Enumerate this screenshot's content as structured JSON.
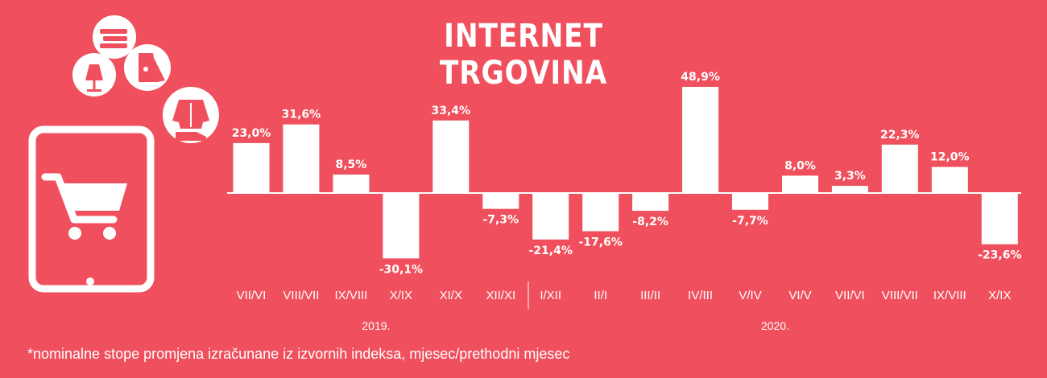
{
  "title": "INTERNET TRGOVINA",
  "footnote": "*nominalne stope promjena izračunane iz izvornih indeksa, mjesec/prethodni mjesec",
  "colors": {
    "background": "#f0505d",
    "bars": "#ffffff"
  },
  "icons": [
    "books-icon",
    "lamp-icon",
    "fridge-icon",
    "clothing-icon",
    "tablet-cart-icon"
  ],
  "chart_data": {
    "type": "bar",
    "categories": [
      "VII/VI",
      "VIII/VII",
      "IX/VIII",
      "X/IX",
      "XI/X",
      "XII/XI",
      "I/XII",
      "II/I",
      "III/II",
      "IV/III",
      "V/IV",
      "VI/V",
      "VII/VI",
      "VIII/VII",
      "IX/VIII",
      "X/IX"
    ],
    "values": [
      23.0,
      31.6,
      8.5,
      -30.1,
      33.4,
      -7.3,
      -21.4,
      -17.6,
      -8.2,
      48.9,
      -7.7,
      8.0,
      3.3,
      22.3,
      12.0,
      -23.6
    ],
    "value_labels": [
      "23,0%",
      "31,6%",
      "8,5%",
      "-30,1%",
      "33,4%",
      "-7,3%",
      "-21,4%",
      "-17,6%",
      "-8,2%",
      "48,9%",
      "-7,7%",
      "8,0%",
      "3,3%",
      "22,3%",
      "12,0%",
      "-23,6%"
    ],
    "groups": [
      {
        "label": "2019.",
        "count": 6
      },
      {
        "label": "2020.",
        "count": 10
      }
    ],
    "xlabel": "",
    "ylabel": "",
    "grid": false,
    "legend": "none"
  }
}
